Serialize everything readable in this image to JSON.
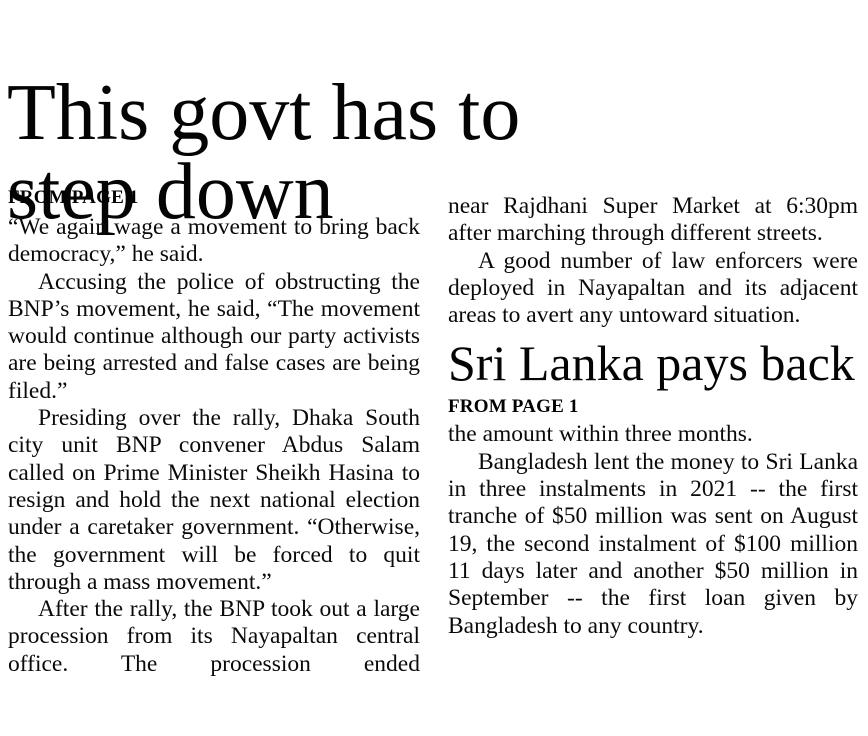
{
  "page": {
    "background_color": "#ffffff",
    "text_color": "#0a0a0a"
  },
  "article_main": {
    "headline_full": "This govt has to step down",
    "headline_lines": [
      "This govt has to",
      "step down"
    ],
    "from_label": "FROM PAGE 1",
    "column1_paragraphs": {
      "p1": "“We again wage a movement to bring back democracy,” he said.",
      "p2": "Accusing the police of obstructing the BNP’s movement, he said, “The movement would continue although our party activists are being arrested and false cases are being filed.”",
      "p3": "Presiding over the rally, Dhaka South city unit BNP convener Abdus Salam called on Prime Minister Sheikh Hasina to resign and hold the next national election under a caretaker government. “Otherwise, the government will be forced to quit through a mass movement.”",
      "p4": "After the rally, the BNP took out a large procession from its Nayapaltan central office. The procession ended"
    },
    "column2_paragraphs": {
      "p1": "near Rajdhani Super Market at 6:30pm after marching through different streets.",
      "p2": "A good number of law enforcers were deployed in Nayapaltan and its adjacent areas to avert any untoward situation."
    }
  },
  "article_secondary": {
    "headline": "Sri Lanka pays back",
    "from_label": "FROM PAGE 1",
    "paragraphs": {
      "p1": "the amount within three months.",
      "p2": "Bangladesh lent the money to Sri Lanka in three instalments in 2021 -- the first tranche of $50 million was sent on August 19, the second instalment of $100 million 11 days later and another $50 million in September -- the first loan given by Bangladesh to any country."
    }
  }
}
